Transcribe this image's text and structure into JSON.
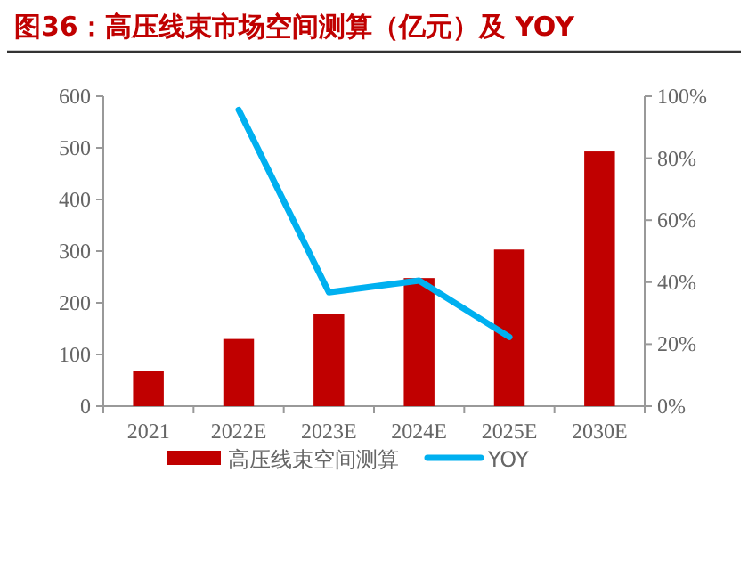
{
  "chart_data": {
    "type": "bar",
    "title": "图36：高压线束市场空间测算（亿元）及 YOY",
    "categories": [
      "2021",
      "2022E",
      "2023E",
      "2024E",
      "2025E",
      "2030E"
    ],
    "series": [
      {
        "name": "高压线束空间测算",
        "color": "#c00000",
        "values": [
          68,
          130,
          179,
          248,
          303,
          493
        ]
      },
      {
        "name": "YOY",
        "type": "line",
        "axis": "y2",
        "color": "#00b0f0",
        "values": [
          null,
          95.6,
          36.7,
          40.5,
          22.3,
          null
        ]
      }
    ],
    "ylim": [
      0,
      600
    ],
    "yticks": [
      0,
      100,
      200,
      300,
      400,
      500,
      600
    ],
    "y2lim": [
      0,
      100
    ],
    "y2ticks": [
      {
        "value": 0,
        "label": "0%"
      },
      {
        "value": 20,
        "label": "20%"
      },
      {
        "value": 40,
        "label": "40%"
      },
      {
        "value": 60,
        "label": "60%"
      },
      {
        "value": 80,
        "label": "80%"
      },
      {
        "value": 100,
        "label": "100%"
      }
    ],
    "legend": "bottom",
    "grid": false
  }
}
